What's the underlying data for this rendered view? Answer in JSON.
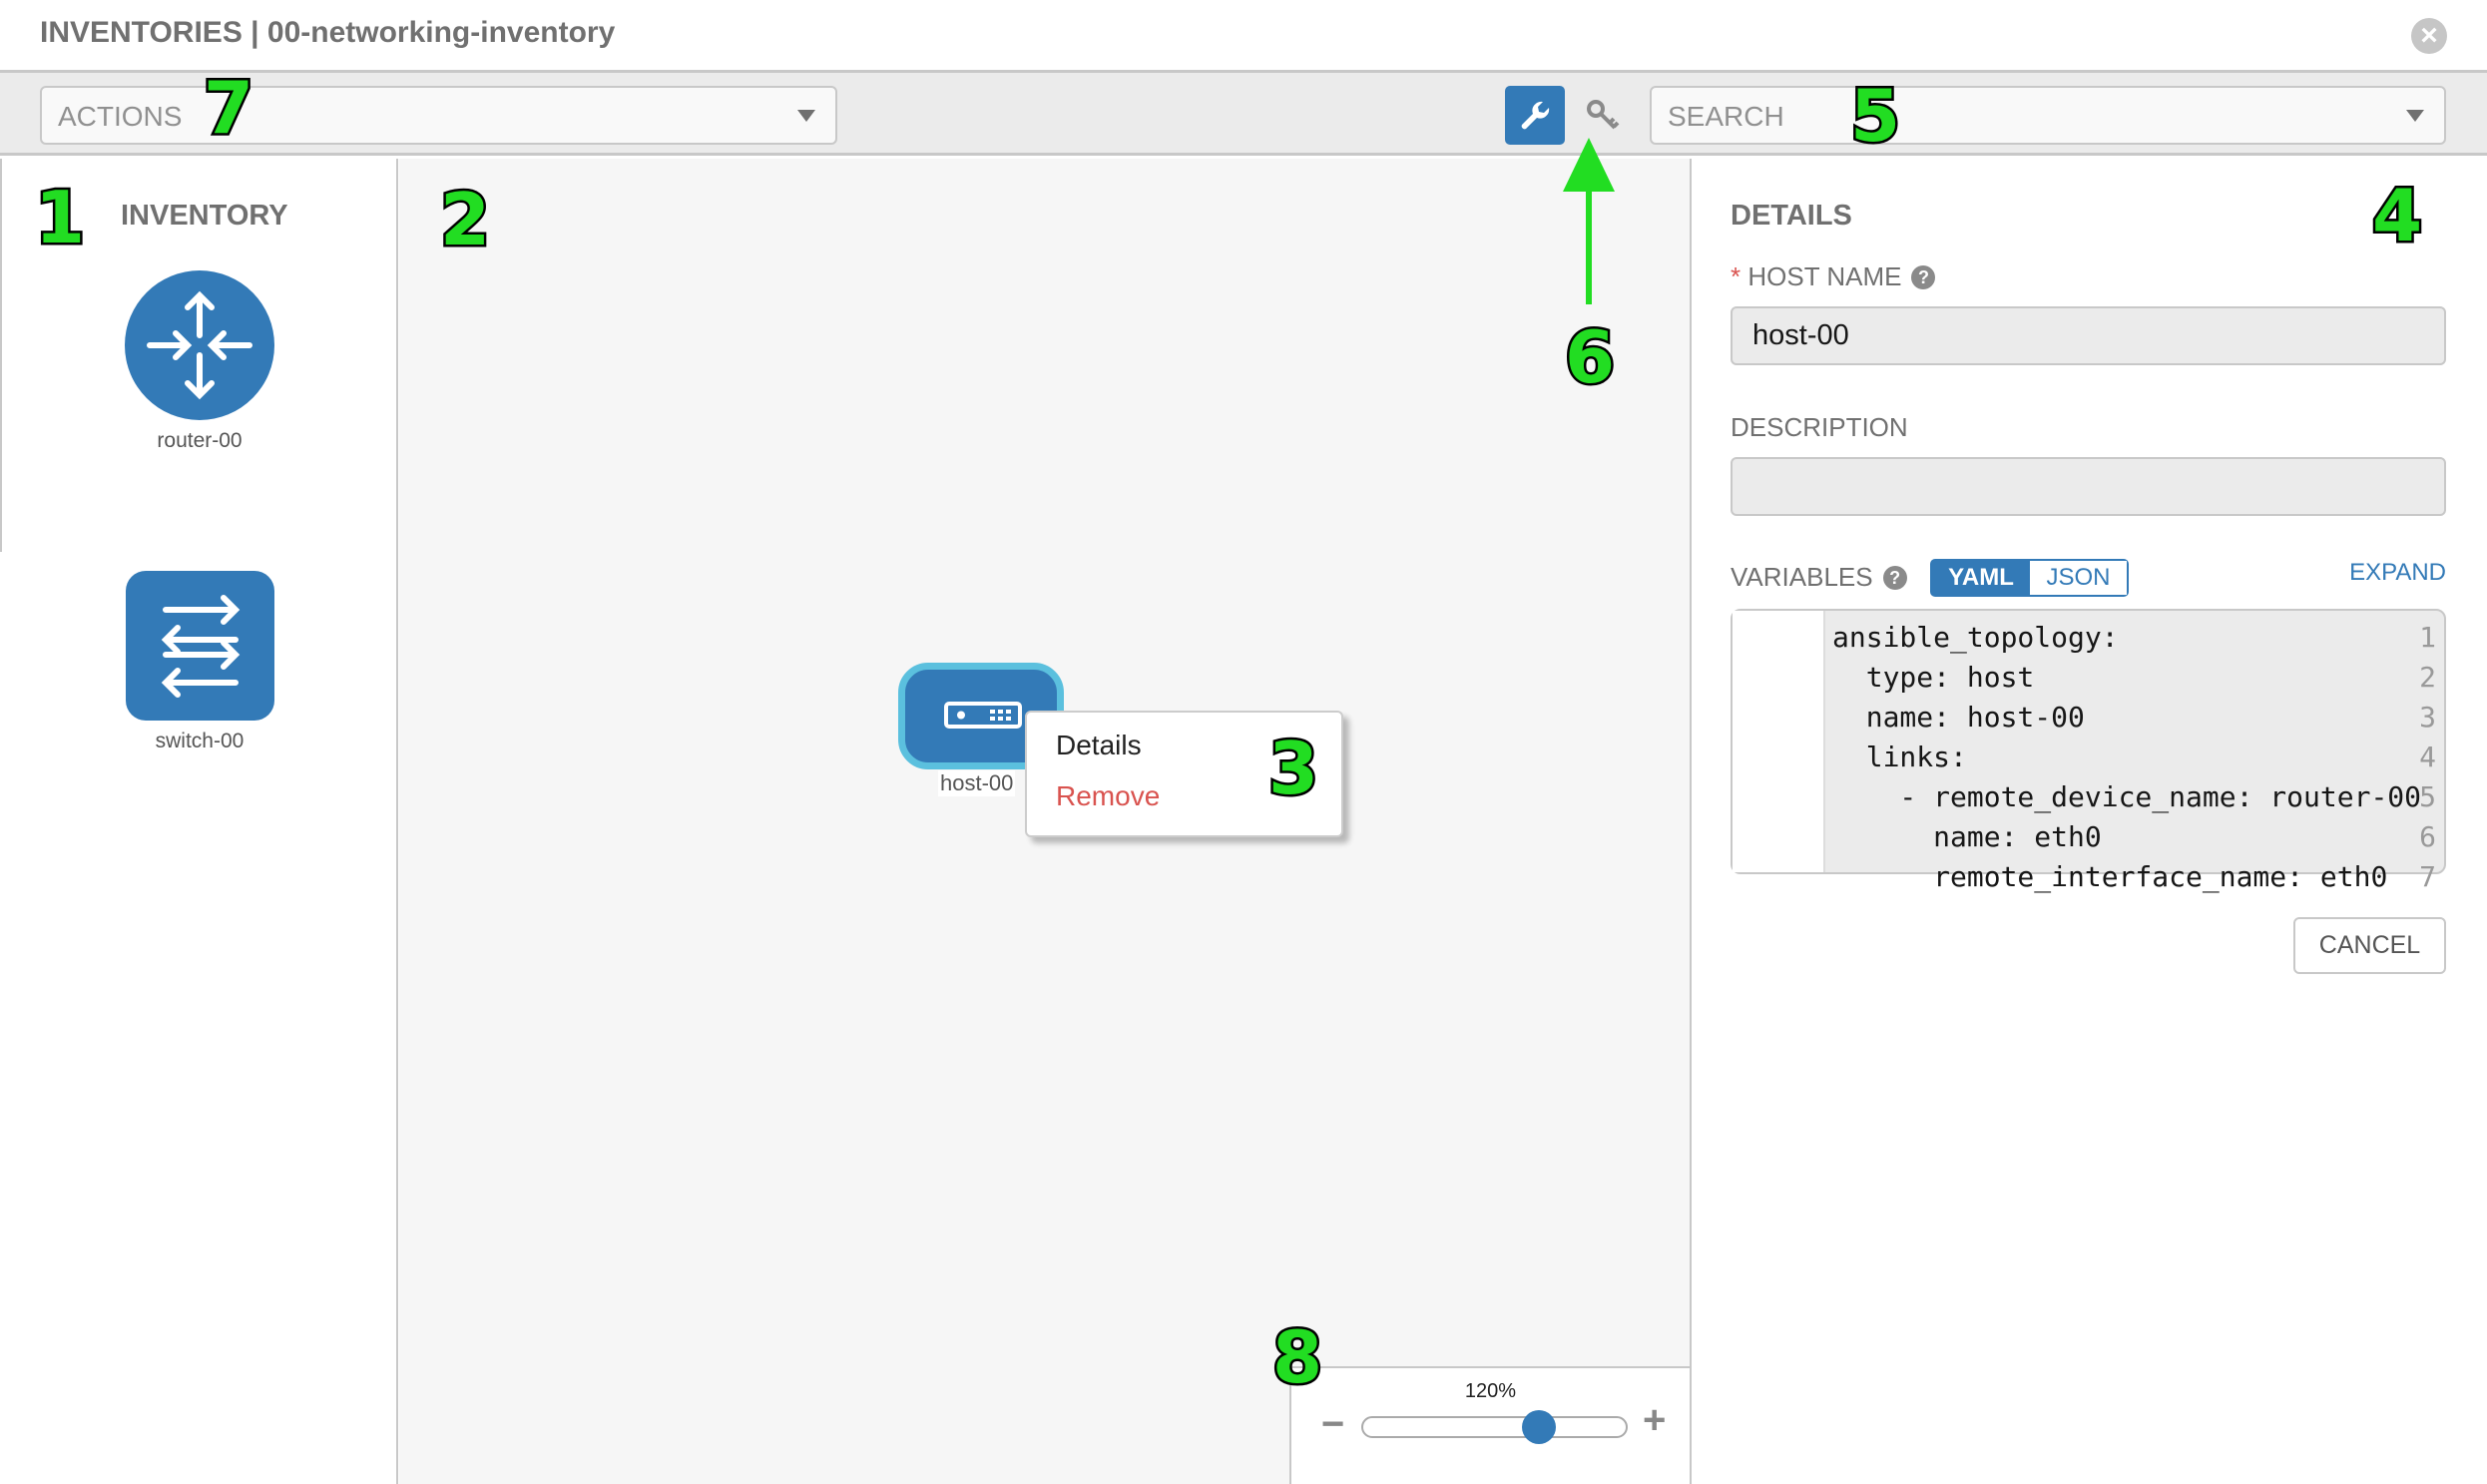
{
  "header": {
    "title": "INVENTORIES | 00-networking-inventory",
    "close_icon": "close-circle-icon"
  },
  "toolbar": {
    "actions_placeholder": "ACTIONS",
    "search_placeholder": "SEARCH",
    "wrench_icon": "wrench-icon",
    "key_icon": "key-icon"
  },
  "inventory": {
    "heading": "INVENTORY",
    "items": [
      {
        "label": "router-00",
        "icon": "router-icon"
      },
      {
        "label": "switch-00",
        "icon": "switch-icon"
      }
    ]
  },
  "canvas": {
    "node": {
      "label": "host-00",
      "icon": "server-icon"
    },
    "context_menu": {
      "details": "Details",
      "remove": "Remove"
    }
  },
  "zoom": {
    "value": "120%",
    "level_percent": 120,
    "minus": "−",
    "plus": "+"
  },
  "details": {
    "heading": "DETAILS",
    "required_mark": "*",
    "host_name_label": "HOST NAME",
    "host_name_value": "host-00",
    "description_label": "DESCRIPTION",
    "description_value": "",
    "variables_label": "VARIABLES",
    "yaml": "YAML",
    "json": "JSON",
    "expand": "EXPAND",
    "code_lines": [
      {
        "n": "1",
        "text": "ansible_topology:"
      },
      {
        "n": "2",
        "text": "  type: host"
      },
      {
        "n": "3",
        "text": "  name: host-00"
      },
      {
        "n": "4",
        "text": "  links:"
      },
      {
        "n": "5",
        "text": "    - remote_device_name: router-00"
      },
      {
        "n": "6",
        "text": "      name: eth0"
      },
      {
        "n": "7",
        "text": "      remote_interface_name: eth0"
      }
    ],
    "cancel": "CANCEL"
  },
  "annotations": [
    "1",
    "2",
    "3",
    "4",
    "5",
    "6",
    "7",
    "8"
  ],
  "colors": {
    "primary": "#337ab7",
    "node_border": "#5bc0de",
    "danger": "#d9534f",
    "annotation": "#22dd22"
  }
}
